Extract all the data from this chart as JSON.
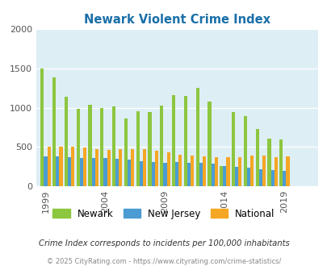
{
  "title": "Newark Violent Crime Index",
  "title_color": "#1a6fa8",
  "year_vals": [
    1999,
    2000,
    2001,
    2002,
    2003,
    2004,
    2005,
    2006,
    2007,
    2008,
    2009,
    2010,
    2011,
    2012,
    2013,
    2014,
    2015,
    2016,
    2017,
    2018,
    2019,
    2020,
    2021
  ],
  "newark_vals": [
    1500,
    1390,
    1145,
    990,
    1040,
    1000,
    1020,
    860,
    960,
    940,
    1030,
    1165,
    1155,
    1250,
    1080,
    260,
    940,
    895,
    730,
    610,
    595,
    0,
    0
  ],
  "new_jersey_vals": [
    380,
    380,
    365,
    355,
    360,
    355,
    350,
    335,
    320,
    310,
    300,
    305,
    295,
    295,
    285,
    260,
    250,
    240,
    220,
    205,
    195,
    0,
    0
  ],
  "national_vals": [
    500,
    500,
    500,
    490,
    470,
    465,
    475,
    475,
    470,
    455,
    435,
    400,
    390,
    380,
    365,
    365,
    370,
    390,
    395,
    370,
    375,
    0,
    0
  ],
  "color_newark": "#8dc63f",
  "color_nj": "#4b9cd3",
  "color_national": "#f5a623",
  "bg_color": "#deeef5",
  "ylim": [
    0,
    2000
  ],
  "xticks": [
    1999,
    2004,
    2009,
    2014,
    2019
  ],
  "subtitle": "Crime Index corresponds to incidents per 100,000 inhabitants",
  "footer": "© 2025 CityRating.com - https://www.cityrating.com/crime-statistics/",
  "legend_labels": [
    "Newark",
    "New Jersey",
    "National"
  ]
}
